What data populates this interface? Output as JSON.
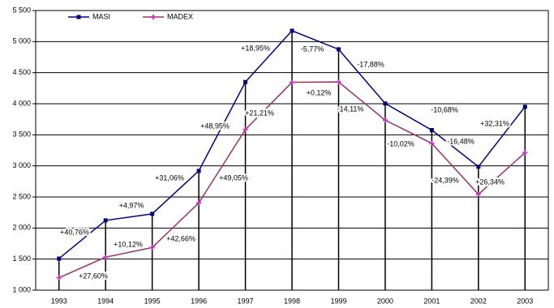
{
  "chart_data": {
    "type": "line",
    "categories": [
      "1993",
      "1994",
      "1995",
      "1996",
      "1997",
      "1998",
      "1999",
      "2000",
      "2001",
      "2002",
      "2003"
    ],
    "series": [
      {
        "name": "MASI",
        "color": "#000080",
        "values": [
          1508,
          2123,
          2228,
          2920,
          4350,
          5175,
          4876,
          4004,
          3576,
          2987,
          3952
        ],
        "annotations": [
          "+40,76%",
          "+4,97%",
          "+31,06%",
          "+48,95%",
          "+18,95%",
          "-5,77%",
          "-17,88%",
          "-10,68%",
          "-16,48%",
          "+32,31%"
        ]
      },
      {
        "name": "MADEX",
        "color": "#993366",
        "values": [
          1200,
          1531,
          1686,
          2405,
          3585,
          4345,
          4350,
          3736,
          3362,
          2542,
          3212
        ],
        "annotations": [
          "+27,60%",
          "+10,12%",
          "+42,66%",
          "+49,05%",
          "+21,21%",
          "+0,12%",
          "-14,11%",
          "-10,02%",
          "-24,39%",
          "+26,34%"
        ]
      }
    ],
    "ylim": [
      1000,
      5500
    ],
    "yticks": [
      {
        "value": 1000,
        "label": "1 000"
      },
      {
        "value": 1500,
        "label": "1 500"
      },
      {
        "value": 2000,
        "label": "2 000"
      },
      {
        "value": 2500,
        "label": "2 500"
      },
      {
        "value": 3000,
        "label": "3 000"
      },
      {
        "value": 3500,
        "label": "3 500"
      },
      {
        "value": 4000,
        "label": "4 000"
      },
      {
        "value": 4500,
        "label": "4 500"
      },
      {
        "value": 5000,
        "label": "5 000"
      },
      {
        "value": 5500,
        "label": "5 500"
      }
    ],
    "grid": true,
    "legend": "top-left"
  }
}
